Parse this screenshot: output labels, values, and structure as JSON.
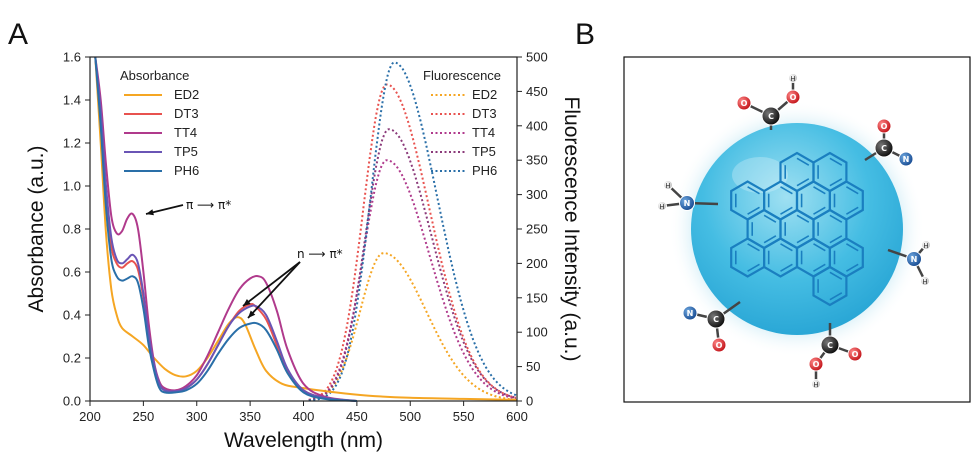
{
  "panels": {
    "a_label": "A",
    "b_label": "B"
  },
  "chart_data": {
    "type": "line",
    "xlabel": "Wavelength (nm)",
    "ylabel": "Absorbance (a.u.)",
    "ylabel_right": "Fluorescence Intensity (a.u.)",
    "xlim": [
      200,
      600
    ],
    "ylim": [
      0,
      1.6
    ],
    "ylim_right": [
      0,
      500
    ],
    "xticks": [
      200,
      250,
      300,
      350,
      400,
      450,
      500,
      550,
      600
    ],
    "yticks": [
      "0.0",
      "0.2",
      "0.4",
      "0.6",
      "0.8",
      "1.0",
      "1.2",
      "1.4",
      "1.6"
    ],
    "yticks_right": [
      "0",
      "50",
      "100",
      "150",
      "200",
      "250",
      "300",
      "350",
      "400",
      "450",
      "500"
    ],
    "legend_absorbance_title": "Absorbance",
    "legend_fluorescence_title": "Fluorescence",
    "annotations": [
      {
        "text": "π ⟶ π*"
      },
      {
        "text": "n ⟶ π*"
      }
    ],
    "absorbance_series": [
      {
        "name": "ED2",
        "color": "#f5a623",
        "x": [
          205,
          210,
          215,
          220,
          225,
          230,
          240,
          250,
          260,
          270,
          280,
          290,
          300,
          310,
          320,
          330,
          338,
          345,
          355,
          365,
          380,
          400,
          430,
          460,
          500,
          550,
          600
        ],
        "y": [
          1.6,
          1.2,
          0.78,
          0.52,
          0.4,
          0.34,
          0.3,
          0.26,
          0.2,
          0.15,
          0.12,
          0.115,
          0.14,
          0.2,
          0.28,
          0.36,
          0.39,
          0.36,
          0.24,
          0.14,
          0.08,
          0.06,
          0.04,
          0.025,
          0.015,
          0.01,
          0.005
        ]
      },
      {
        "name": "DT3",
        "color": "#e8524f",
        "x": [
          205,
          210,
          215,
          220,
          225,
          230,
          235,
          240,
          245,
          250,
          255,
          260,
          265,
          270,
          280,
          290,
          300,
          310,
          320,
          330,
          340,
          350,
          355,
          365,
          375,
          385,
          400,
          420,
          450
        ],
        "y": [
          1.6,
          1.3,
          0.95,
          0.72,
          0.64,
          0.62,
          0.64,
          0.65,
          0.61,
          0.48,
          0.3,
          0.16,
          0.08,
          0.05,
          0.045,
          0.06,
          0.1,
          0.17,
          0.26,
          0.35,
          0.42,
          0.45,
          0.44,
          0.38,
          0.26,
          0.14,
          0.05,
          0.015,
          0.0
        ]
      },
      {
        "name": "TT4",
        "color": "#b03a8c",
        "x": [
          205,
          210,
          215,
          220,
          225,
          230,
          235,
          240,
          245,
          250,
          255,
          260,
          265,
          270,
          280,
          290,
          300,
          310,
          320,
          330,
          340,
          350,
          358,
          365,
          375,
          385,
          400,
          420,
          450
        ],
        "y": [
          1.6,
          1.4,
          1.1,
          0.86,
          0.78,
          0.79,
          0.85,
          0.87,
          0.8,
          0.6,
          0.36,
          0.18,
          0.09,
          0.06,
          0.05,
          0.07,
          0.12,
          0.21,
          0.32,
          0.43,
          0.52,
          0.57,
          0.58,
          0.55,
          0.42,
          0.24,
          0.08,
          0.02,
          0.0
        ]
      },
      {
        "name": "TP5",
        "color": "#6a55b5",
        "x": [
          205,
          210,
          215,
          220,
          225,
          230,
          235,
          240,
          245,
          250,
          255,
          260,
          265,
          270,
          280,
          290,
          300,
          310,
          320,
          330,
          340,
          350,
          356,
          365,
          375,
          385,
          400,
          420,
          450
        ],
        "y": [
          1.6,
          1.35,
          1.0,
          0.76,
          0.66,
          0.64,
          0.66,
          0.68,
          0.64,
          0.5,
          0.31,
          0.17,
          0.08,
          0.05,
          0.045,
          0.06,
          0.1,
          0.17,
          0.26,
          0.35,
          0.41,
          0.44,
          0.44,
          0.4,
          0.28,
          0.15,
          0.05,
          0.015,
          0.0
        ]
      },
      {
        "name": "PH6",
        "color": "#2a6fa8",
        "x": [
          205,
          210,
          215,
          220,
          225,
          230,
          235,
          240,
          245,
          250,
          255,
          260,
          265,
          270,
          280,
          290,
          300,
          310,
          320,
          330,
          340,
          350,
          357,
          365,
          375,
          385,
          400,
          420,
          450
        ],
        "y": [
          1.6,
          1.28,
          0.9,
          0.66,
          0.58,
          0.56,
          0.57,
          0.58,
          0.55,
          0.43,
          0.26,
          0.14,
          0.06,
          0.04,
          0.04,
          0.05,
          0.08,
          0.14,
          0.22,
          0.29,
          0.34,
          0.36,
          0.36,
          0.33,
          0.24,
          0.13,
          0.04,
          0.01,
          0.0
        ]
      }
    ],
    "fluorescence_series": [
      {
        "name": "ED2",
        "color": "#f5a623",
        "peak": 475,
        "amplitude": 215
      },
      {
        "name": "DT3",
        "color": "#e8524f",
        "peak": 478,
        "amplitude": 460
      },
      {
        "name": "TT4",
        "color": "#b03a8c",
        "peak": 478,
        "amplitude": 350
      },
      {
        "name": "TP5",
        "color": "#8b3a7a",
        "peak": 480,
        "amplitude": 395
      },
      {
        "name": "PH6",
        "color": "#2a6fa8",
        "peak": 485,
        "amplitude": 492
      }
    ]
  },
  "panel_b": {
    "atoms": {
      "O": "O",
      "C": "C",
      "N": "N",
      "H": "H"
    }
  }
}
